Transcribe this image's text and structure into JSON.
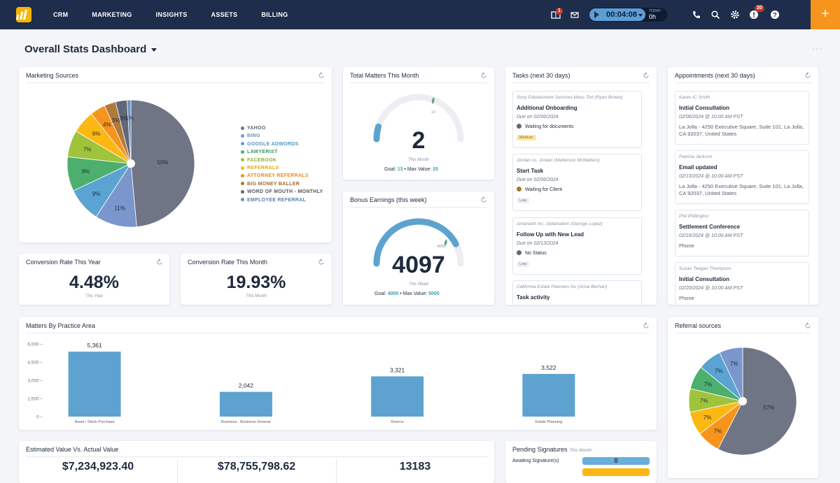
{
  "nav": {
    "items": [
      "CRM",
      "MARKETING",
      "INSIGHTS",
      "ASSETS",
      "BILLING"
    ]
  },
  "topbar": {
    "calendar_badge": "1",
    "timer_time": "00:04:08",
    "today_label": "TODAY:",
    "today_hours": "0h",
    "alerts_badge": "20",
    "plus_label": "+"
  },
  "page": {
    "title": "Overall Stats Dashboard",
    "more_label": "···"
  },
  "marketing_sources": {
    "title": "Marketing Sources",
    "legend": [
      "YAHOO",
      "BING",
      "GOOGLE ADWORDS",
      "LAWYERIST",
      "FACEBOOK",
      "REFERRALS",
      "ATTORNEY REFERRALS",
      "BIG MONEY BALLER",
      "WORD OF MOUTH - MONTHLY",
      "EMPLOYEE REFERRAL"
    ],
    "colors": [
      "#6f7585",
      "#7a96cc",
      "#5ba3d2",
      "#4caf6e",
      "#9fc43c",
      "#fbb813",
      "#f7941d",
      "#b07a3c",
      "#5f6878",
      "#6a8fc2"
    ],
    "slice_labels": [
      "50%",
      "11%",
      "9%",
      "9%",
      "7%",
      "6%",
      "4%",
      "3%",
      "3%",
      "1%"
    ]
  },
  "total_matters": {
    "title": "Total Matters This Month",
    "value": "2",
    "note": "This Month",
    "goal_label": "Goal:",
    "goal": "13",
    "max_label": "Max Value:",
    "max": "20",
    "marker": "13"
  },
  "bonus_earnings": {
    "title": "Bonus Earnings (this week)",
    "value": "4097",
    "note": "This Week",
    "goal_label": "Goal:",
    "goal": "4000",
    "max_label": "Max Value:",
    "max": "5000",
    "marker": "4000"
  },
  "conversion_year": {
    "title": "Conversion Rate This Year",
    "value": "4.48%",
    "note": "This Year"
  },
  "conversion_month": {
    "title": "Conversion Rate This Month",
    "value": "19.93%",
    "note": "This Month"
  },
  "tasks": {
    "title": "Tasks (next 30 days)",
    "items": [
      {
        "who": "Sony Edutainment Services Mass Tort (Ryan Brown)",
        "title": "Additional Onboarding",
        "due": "Due on 02/06/2024",
        "status": "Waiting for documents",
        "status_color": "#5f6878",
        "priority": "Medium",
        "priority_bg": "#fbe7a6",
        "priority_fg": "#8a6d00"
      },
      {
        "who": "Jordan vs. Jordan (Matterson McMatters)",
        "title": "Start Task",
        "due": "Due on 02/06/2024",
        "status": "Waiting for Client",
        "status_color": "#a0782d",
        "priority": "Low",
        "priority_bg": "#eef0f4",
        "priority_fg": "#6b7385"
      },
      {
        "who": "Amanarth Inc. Defamation (George Lopez)",
        "title": "Follow Up with New Lead",
        "due": "Due on 02/13/2024",
        "status": "No Status",
        "status_color": "#5f6878",
        "priority": "Low",
        "priority_bg": "#eef0f4",
        "priority_fg": "#6b7385"
      },
      {
        "who": "California Estate Planners Inc (Amal Berhan)",
        "title": "Task activity"
      }
    ]
  },
  "appointments": {
    "title": "Appointments (next 30 days)",
    "items": [
      {
        "who": "Karen IC Smith",
        "title": "Initial Consultation",
        "when": "02/06/2024 @ 10:00 AM PST",
        "where": "La Jolla - 4250 Executive Square, Suite 101, La Jolla, CA 92037, United States"
      },
      {
        "who": "Patricia Jackson",
        "title": "Email updated",
        "when": "02/13/2024 @ 10:00 AM PST",
        "where": "La Jolla - 4250 Executive Square, Suite 101, La Jolla, CA 92037, United States"
      },
      {
        "who": "Phil Phillington",
        "title": "Settlement Conference",
        "when": "02/16/2024 @ 10:00 AM PST",
        "where": "Phone"
      },
      {
        "who": "Susan Teegan Thompson",
        "title": "Initial Consultation",
        "when": "02/20/2024 @ 10:00 AM PST",
        "where": "Phone"
      }
    ]
  },
  "matters_by_practice": {
    "title": "Matters By Practice Area"
  },
  "chart_data": {
    "type": "bar",
    "categories": [
      "Asset / Stock Purchase",
      "Business - Business General",
      "Divorce",
      "Estate Planning"
    ],
    "values": [
      5361,
      2042,
      3321,
      3522
    ],
    "value_labels": [
      "5,361",
      "2,042",
      "3,321",
      "3,522"
    ],
    "yticks": [
      "6,000",
      "4,500",
      "3,000",
      "1,500",
      "0"
    ],
    "ylim": [
      0,
      6000
    ],
    "color": "#5ea3d0",
    "grid": false
  },
  "referral_sources": {
    "title": "Referral sources",
    "colors": [
      "#6f7585",
      "#f7941d",
      "#fbb813",
      "#9fc43c",
      "#4caf6e",
      "#5ba3d2",
      "#7a96cc"
    ],
    "slice_labels": [
      "57%",
      "7%",
      "7%",
      "7%",
      "7%",
      "7%",
      "7%"
    ]
  },
  "estimated_vs_actual": {
    "title": "Estimated Value Vs. Actual Value",
    "values": [
      "$7,234,923.40",
      "$78,755,798.62",
      "13183"
    ]
  },
  "pending_signatures": {
    "title": "Pending Signatures",
    "subtitle": "This Month",
    "rows": [
      {
        "label": "Awaiting Signature(s)",
        "value": "0"
      }
    ]
  }
}
